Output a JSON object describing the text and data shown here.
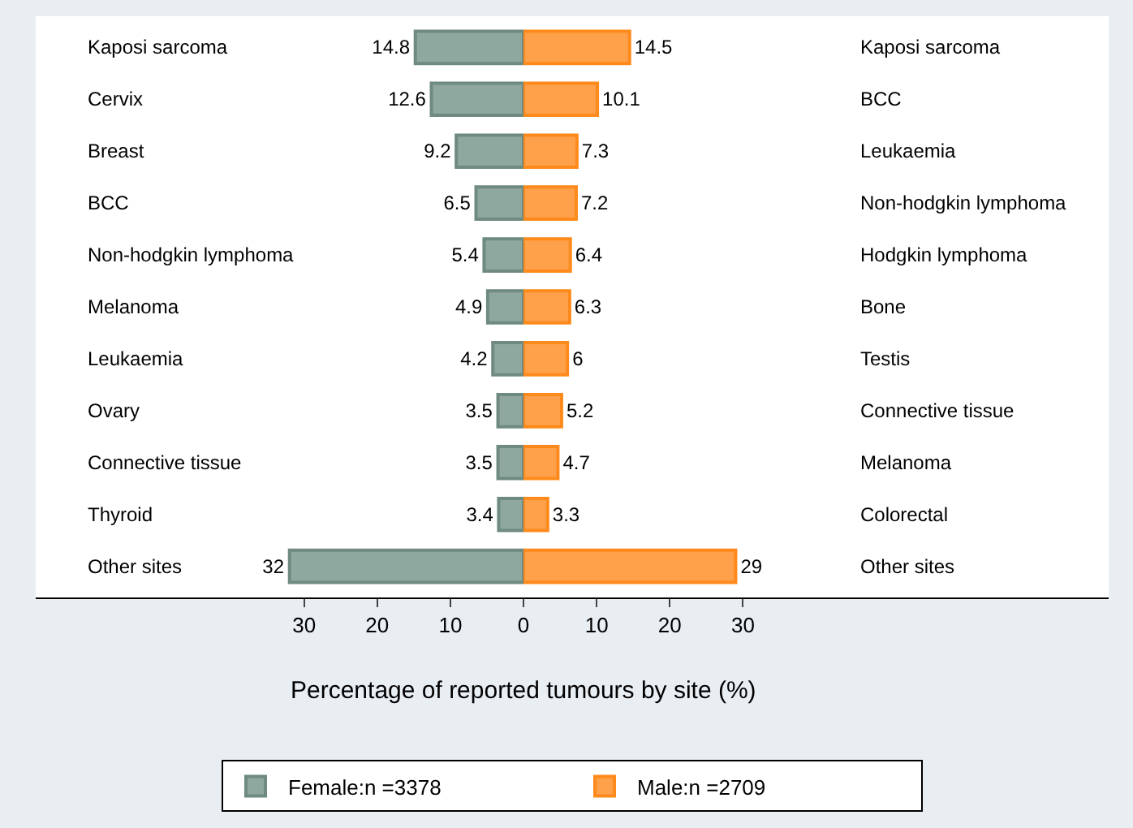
{
  "chart_data": [
    {
      "type": "bar",
      "orientation": "horizontal",
      "xlabel": "Percentage of reported tumours by site (%)",
      "categories": [
        "Kaposi sarcoma",
        "Cervix",
        "Breast",
        "BCC",
        "Non-hodgkin lymphoma",
        "Melanoma",
        "Leukaemia",
        "Ovary",
        "Connective tissue",
        "Thyroid",
        "Other sites"
      ],
      "series": [
        {
          "name": "Female:n =3378",
          "color": "#8fa89f",
          "values": [
            14.8,
            12.6,
            9.2,
            6.5,
            5.4,
            4.9,
            4.2,
            3.5,
            3.5,
            3.4,
            32
          ]
        }
      ],
      "data_labels": true,
      "xlim": [
        66.7,
        0
      ],
      "xticks": [
        30,
        20,
        10,
        0
      ],
      "legend": "bottom"
    },
    {
      "type": "bar",
      "orientation": "horizontal",
      "categories": [
        "Kaposi sarcoma",
        "BCC",
        "Leukaemia",
        "Non-hodgkin lymphoma",
        "Hodgkin lymphoma",
        "Bone",
        "Testis",
        "Connective tissue",
        "Melanoma",
        "Colorectal",
        "Other sites"
      ],
      "series": [
        {
          "name": "Male:n =2709",
          "color": "#ffa04a",
          "values": [
            14.5,
            10.1,
            7.3,
            7.2,
            6.4,
            6.3,
            6,
            5.2,
            4.7,
            3.3,
            29
          ]
        }
      ],
      "data_labels": true,
      "xlim": [
        0,
        80
      ],
      "xticks": [
        10,
        20,
        30
      ],
      "legend": "bottom"
    }
  ]
}
